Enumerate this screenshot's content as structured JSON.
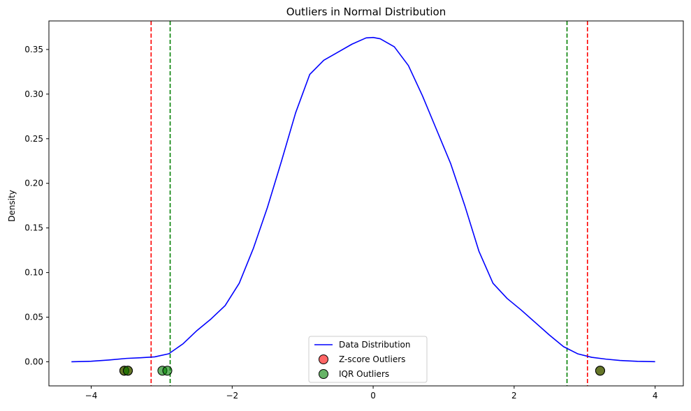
{
  "chart_data": {
    "type": "line",
    "title": "Outliers in Normal Distribution",
    "xlabel": "",
    "ylabel": "Density",
    "xlim": [
      -4.6,
      4.4
    ],
    "ylim": [
      -0.027,
      0.382
    ],
    "xticks": [
      -4,
      -2,
      0,
      2,
      4
    ],
    "xtick_labels": [
      "−4",
      "−2",
      "0",
      "2",
      "4"
    ],
    "yticks": [
      0.0,
      0.05,
      0.1,
      0.15,
      0.2,
      0.25,
      0.3,
      0.35
    ],
    "ytick_labels": [
      "0.00",
      "0.05",
      "0.10",
      "0.15",
      "0.20",
      "0.25",
      "0.30",
      "0.35"
    ],
    "grid": false,
    "legend_position": "bottom-center",
    "series": [
      {
        "name": "Data Distribution",
        "kind": "line",
        "color": "#0000ff",
        "x": [
          -4.28,
          -4.0,
          -3.75,
          -3.5,
          -3.3,
          -3.1,
          -2.9,
          -2.7,
          -2.5,
          -2.3,
          -2.1,
          -1.9,
          -1.7,
          -1.5,
          -1.3,
          -1.1,
          -0.9,
          -0.7,
          -0.5,
          -0.3,
          -0.1,
          0.0,
          0.1,
          0.3,
          0.5,
          0.7,
          0.9,
          1.1,
          1.3,
          1.5,
          1.7,
          1.9,
          2.1,
          2.3,
          2.5,
          2.7,
          2.9,
          3.1,
          3.3,
          3.5,
          3.75,
          4.0
        ],
        "y": [
          0.0,
          0.0006,
          0.002,
          0.0038,
          0.0045,
          0.0055,
          0.009,
          0.02,
          0.035,
          0.048,
          0.063,
          0.088,
          0.127,
          0.173,
          0.225,
          0.279,
          0.322,
          0.338,
          0.347,
          0.356,
          0.363,
          0.3635,
          0.362,
          0.353,
          0.332,
          0.298,
          0.26,
          0.222,
          0.175,
          0.124,
          0.088,
          0.071,
          0.058,
          0.044,
          0.03,
          0.017,
          0.009,
          0.005,
          0.003,
          0.0015,
          0.0005,
          0.0001
        ]
      },
      {
        "name": "Z-score Outliers",
        "kind": "scatter",
        "color": "#ff0000",
        "x": [
          -3.53,
          -3.48,
          3.22
        ],
        "y": [
          -0.01,
          -0.01,
          -0.01
        ]
      },
      {
        "name": "IQR Outliers",
        "kind": "scatter",
        "color": "#008000",
        "x": [
          -3.53,
          -3.48,
          -2.99,
          -2.92,
          3.22
        ],
        "y": [
          -0.01,
          -0.01,
          -0.01,
          -0.01,
          -0.01
        ]
      }
    ],
    "vlines": [
      {
        "x": -3.15,
        "color": "#ff0000"
      },
      {
        "x": 3.04,
        "color": "#ff0000"
      },
      {
        "x": -2.88,
        "color": "#008000"
      },
      {
        "x": 2.75,
        "color": "#008000"
      }
    ]
  }
}
